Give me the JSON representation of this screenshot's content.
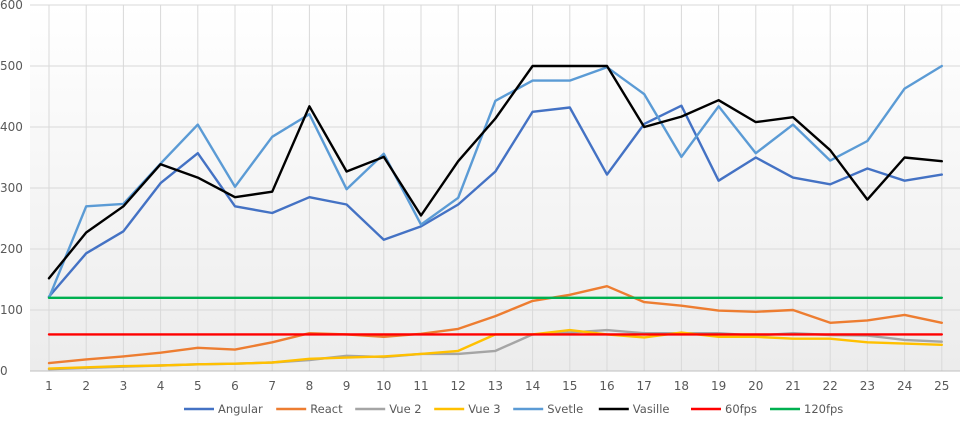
{
  "chart_data": {
    "type": "line",
    "title": "",
    "xlabel": "",
    "ylabel": "",
    "ylim": [
      0,
      600
    ],
    "yticks": [
      0,
      100,
      200,
      300,
      400,
      500,
      600
    ],
    "categories": [
      "1",
      "2",
      "3",
      "4",
      "5",
      "6",
      "7",
      "8",
      "9",
      "10",
      "11",
      "12",
      "13",
      "14",
      "15",
      "16",
      "17",
      "18",
      "19",
      "20",
      "21",
      "22",
      "23",
      "24",
      "25"
    ],
    "grid": "on",
    "legend_position": "bottom",
    "series": [
      {
        "name": "Angular",
        "color": "#4472c4",
        "values": [
          122,
          193,
          229,
          308,
          357,
          270,
          259,
          285,
          273,
          215,
          237,
          273,
          327,
          425,
          432,
          322,
          405,
          435,
          312,
          350,
          317,
          306,
          332,
          312,
          322
        ]
      },
      {
        "name": "React",
        "color": "#ed7d31",
        "values": [
          13,
          19,
          24,
          30,
          38,
          35,
          47,
          62,
          60,
          56,
          61,
          69,
          90,
          115,
          125,
          139,
          113,
          107,
          99,
          97,
          100,
          79,
          83,
          92,
          79
        ]
      },
      {
        "name": "Vue 2",
        "color": "#a5a5a5",
        "values": [
          3,
          5,
          7,
          9,
          11,
          12,
          14,
          18,
          25,
          23,
          28,
          28,
          33,
          60,
          63,
          67,
          62,
          62,
          62,
          58,
          62,
          59,
          58,
          51,
          48
        ]
      },
      {
        "name": "Vue 3",
        "color": "#ffc000",
        "values": [
          4,
          6,
          8,
          9,
          11,
          12,
          14,
          20,
          22,
          24,
          28,
          33,
          60,
          60,
          67,
          60,
          55,
          63,
          56,
          56,
          53,
          53,
          47,
          45,
          43
        ]
      },
      {
        "name": "Svetle",
        "color": "#5b9bd5",
        "values": [
          120,
          270,
          274,
          340,
          404,
          302,
          384,
          421,
          298,
          356,
          240,
          284,
          443,
          476,
          476,
          498,
          454,
          351,
          434,
          357,
          404,
          345,
          377,
          463,
          500
        ]
      },
      {
        "name": "Vasille",
        "color": "#000000",
        "values": [
          152,
          227,
          270,
          339,
          317,
          285,
          294,
          434,
          327,
          351,
          255,
          344,
          414,
          500,
          500,
          500,
          400,
          417,
          444,
          408,
          416,
          362,
          281,
          350,
          344
        ]
      },
      {
        "name": "60fps",
        "color": "#ff0000",
        "values": [
          60,
          60,
          60,
          60,
          60,
          60,
          60,
          60,
          60,
          60,
          60,
          60,
          60,
          60,
          60,
          60,
          60,
          60,
          60,
          60,
          60,
          60,
          60,
          60,
          60
        ]
      },
      {
        "name": "120fps",
        "color": "#00b050",
        "values": [
          120,
          120,
          120,
          120,
          120,
          120,
          120,
          120,
          120,
          120,
          120,
          120,
          120,
          120,
          120,
          120,
          120,
          120,
          120,
          120,
          120,
          120,
          120,
          120,
          120
        ]
      }
    ]
  }
}
